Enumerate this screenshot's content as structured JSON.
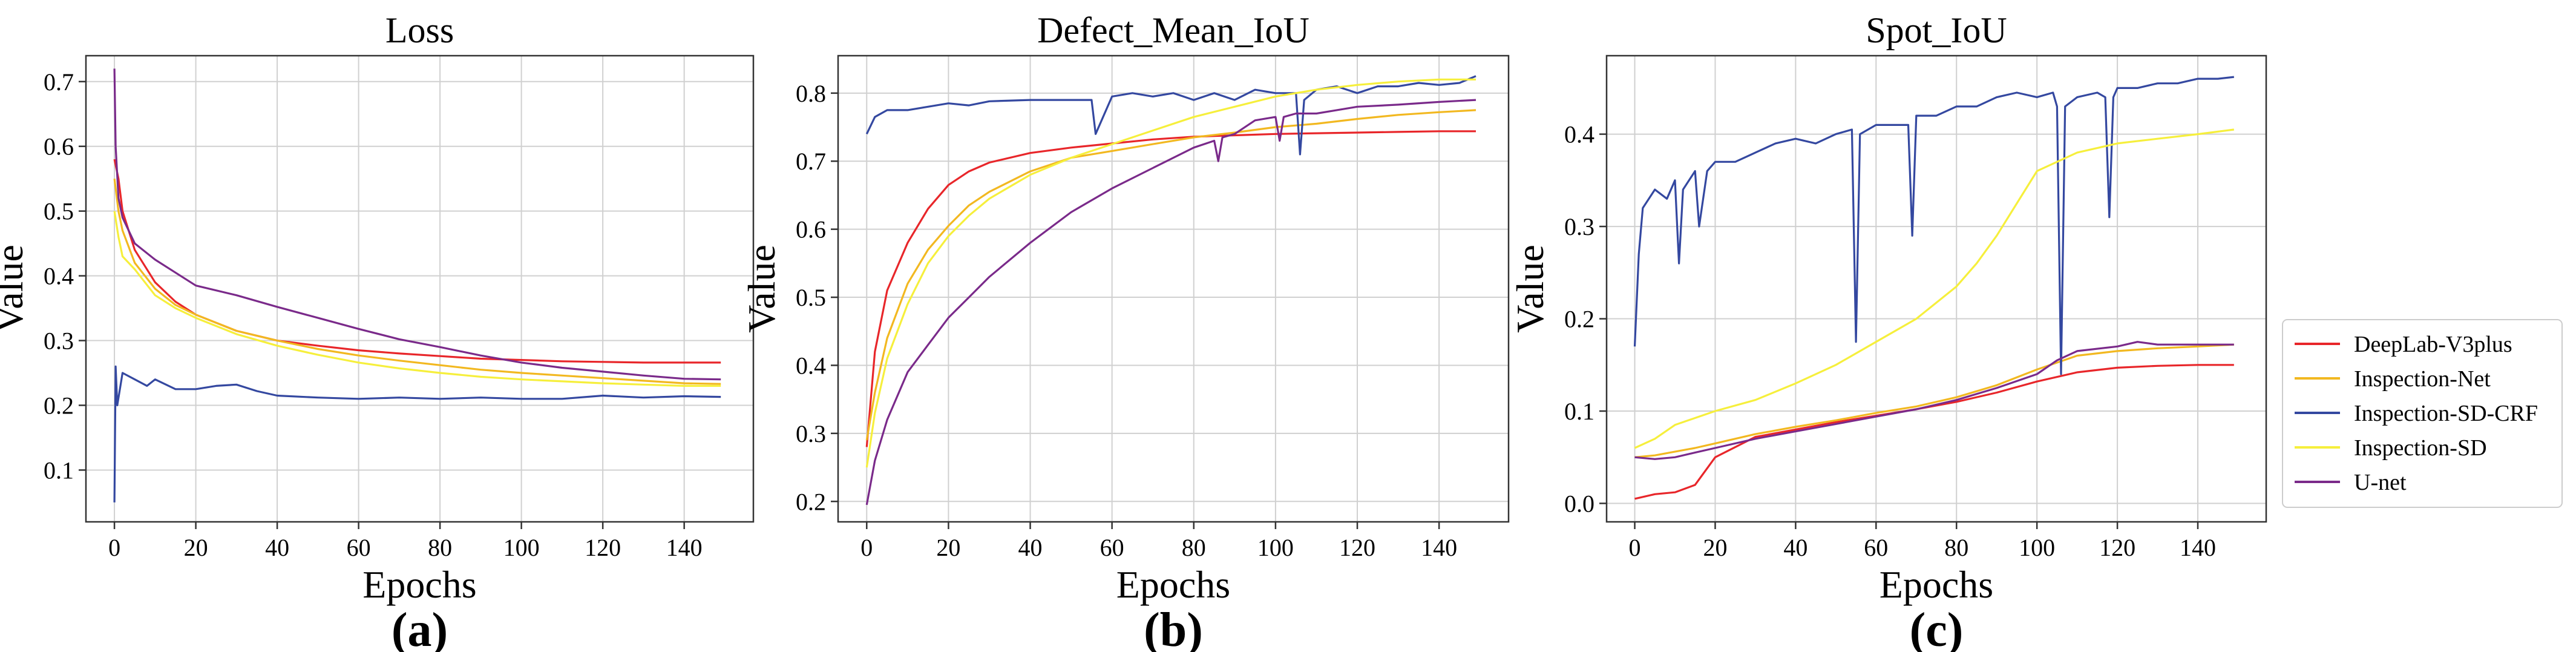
{
  "chart_data": [
    {
      "type": "line",
      "title": "Loss",
      "xlabel": "Epochs",
      "ylabel": "Value",
      "panel_label": "(a)",
      "xlim": [
        -7,
        157
      ],
      "ylim": [
        0.02,
        0.74
      ],
      "xticks": [
        0,
        20,
        40,
        60,
        80,
        100,
        120,
        140
      ],
      "yticks": [
        0.1,
        0.2,
        0.3,
        0.4,
        0.5,
        0.6,
        0.7
      ],
      "ytick_labels": [
        "0.1",
        "0.2",
        "0.3",
        "0.4",
        "0.5",
        "0.6",
        "0.7"
      ],
      "series": [
        {
          "name": "DeepLab-V3plus",
          "x": [
            0,
            1,
            2,
            5,
            10,
            15,
            20,
            30,
            40,
            50,
            60,
            70,
            80,
            90,
            100,
            110,
            120,
            130,
            140,
            149
          ],
          "values": [
            0.58,
            0.55,
            0.5,
            0.44,
            0.39,
            0.36,
            0.34,
            0.315,
            0.3,
            0.292,
            0.285,
            0.28,
            0.276,
            0.272,
            0.27,
            0.268,
            0.267,
            0.266,
            0.266,
            0.266
          ]
        },
        {
          "name": "Inspection-Net",
          "x": [
            0,
            1,
            2,
            5,
            10,
            15,
            20,
            30,
            40,
            50,
            60,
            70,
            80,
            90,
            100,
            110,
            120,
            130,
            140,
            149
          ],
          "values": [
            0.55,
            0.5,
            0.47,
            0.42,
            0.38,
            0.355,
            0.34,
            0.315,
            0.3,
            0.287,
            0.277,
            0.269,
            0.262,
            0.255,
            0.25,
            0.246,
            0.242,
            0.238,
            0.234,
            0.233
          ]
        },
        {
          "name": "Inspection-SD-CRF",
          "x": [
            0,
            0.3,
            0.7,
            2,
            5,
            8,
            10,
            15,
            20,
            25,
            30,
            35,
            40,
            50,
            60,
            70,
            80,
            90,
            100,
            110,
            120,
            130,
            140,
            149
          ],
          "values": [
            0.05,
            0.26,
            0.2,
            0.25,
            0.24,
            0.23,
            0.24,
            0.225,
            0.225,
            0.23,
            0.232,
            0.222,
            0.215,
            0.212,
            0.21,
            0.212,
            0.21,
            0.212,
            0.21,
            0.21,
            0.215,
            0.212,
            0.214,
            0.213
          ]
        },
        {
          "name": "Inspection-SD",
          "x": [
            0,
            1,
            2,
            5,
            10,
            15,
            20,
            30,
            40,
            50,
            60,
            70,
            80,
            90,
            100,
            110,
            120,
            130,
            140,
            149
          ],
          "values": [
            0.5,
            0.46,
            0.43,
            0.41,
            0.37,
            0.35,
            0.335,
            0.31,
            0.292,
            0.278,
            0.266,
            0.257,
            0.25,
            0.244,
            0.24,
            0.237,
            0.234,
            0.232,
            0.23,
            0.23
          ]
        },
        {
          "name": "U-net",
          "x": [
            0,
            0.3,
            1,
            2,
            5,
            10,
            15,
            20,
            30,
            40,
            50,
            60,
            70,
            80,
            90,
            100,
            110,
            120,
            130,
            140,
            149
          ],
          "values": [
            0.72,
            0.6,
            0.52,
            0.49,
            0.45,
            0.425,
            0.405,
            0.385,
            0.37,
            0.352,
            0.335,
            0.318,
            0.302,
            0.29,
            0.277,
            0.266,
            0.258,
            0.252,
            0.246,
            0.241,
            0.24
          ]
        }
      ]
    },
    {
      "type": "line",
      "title": "Defect_Mean_IoU",
      "xlabel": "Epochs",
      "ylabel": "Value",
      "panel_label": "(b)",
      "xlim": [
        -7,
        157
      ],
      "ylim": [
        0.17,
        0.855
      ],
      "xticks": [
        0,
        20,
        40,
        60,
        80,
        100,
        120,
        140
      ],
      "yticks": [
        0.2,
        0.3,
        0.4,
        0.5,
        0.6,
        0.7,
        0.8
      ],
      "ytick_labels": [
        "0.2",
        "0.3",
        "0.4",
        "0.5",
        "0.6",
        "0.7",
        "0.8"
      ],
      "series": [
        {
          "name": "DeepLab-V3plus",
          "x": [
            0,
            2,
            5,
            10,
            15,
            20,
            25,
            30,
            40,
            50,
            60,
            70,
            80,
            90,
            100,
            110,
            120,
            130,
            140,
            149
          ],
          "values": [
            0.28,
            0.42,
            0.51,
            0.58,
            0.63,
            0.665,
            0.685,
            0.698,
            0.712,
            0.72,
            0.726,
            0.732,
            0.736,
            0.738,
            0.74,
            0.741,
            0.742,
            0.743,
            0.744,
            0.744
          ]
        },
        {
          "name": "Inspection-Net",
          "x": [
            0,
            2,
            5,
            10,
            15,
            20,
            25,
            30,
            40,
            50,
            60,
            70,
            80,
            90,
            100,
            110,
            120,
            130,
            140,
            149
          ],
          "values": [
            0.29,
            0.36,
            0.44,
            0.52,
            0.57,
            0.605,
            0.635,
            0.655,
            0.685,
            0.705,
            0.715,
            0.725,
            0.735,
            0.742,
            0.75,
            0.755,
            0.762,
            0.768,
            0.772,
            0.775
          ]
        },
        {
          "name": "Inspection-SD-CRF",
          "x": [
            0,
            2,
            5,
            10,
            15,
            20,
            25,
            30,
            40,
            50,
            55,
            56,
            60,
            65,
            70,
            75,
            80,
            85,
            90,
            95,
            100,
            105,
            106,
            107,
            110,
            115,
            120,
            125,
            130,
            135,
            140,
            145,
            149
          ],
          "values": [
            0.74,
            0.765,
            0.775,
            0.775,
            0.78,
            0.785,
            0.782,
            0.788,
            0.79,
            0.79,
            0.79,
            0.74,
            0.795,
            0.8,
            0.795,
            0.8,
            0.79,
            0.8,
            0.79,
            0.805,
            0.8,
            0.8,
            0.71,
            0.79,
            0.805,
            0.81,
            0.8,
            0.81,
            0.81,
            0.815,
            0.812,
            0.815,
            0.825
          ]
        },
        {
          "name": "Inspection-SD",
          "x": [
            0,
            2,
            5,
            10,
            15,
            20,
            25,
            30,
            40,
            50,
            60,
            70,
            80,
            90,
            100,
            110,
            120,
            130,
            140,
            149
          ],
          "values": [
            0.25,
            0.33,
            0.41,
            0.49,
            0.55,
            0.59,
            0.62,
            0.645,
            0.68,
            0.705,
            0.725,
            0.745,
            0.765,
            0.78,
            0.795,
            0.805,
            0.812,
            0.817,
            0.82,
            0.82
          ]
        },
        {
          "name": "U-net",
          "x": [
            0,
            2,
            5,
            10,
            15,
            20,
            25,
            30,
            40,
            50,
            60,
            70,
            80,
            85,
            86,
            87,
            90,
            95,
            100,
            101,
            102,
            105,
            110,
            115,
            120,
            130,
            140,
            149
          ],
          "values": [
            0.195,
            0.26,
            0.32,
            0.39,
            0.43,
            0.47,
            0.5,
            0.53,
            0.58,
            0.625,
            0.66,
            0.69,
            0.72,
            0.73,
            0.7,
            0.735,
            0.74,
            0.76,
            0.765,
            0.73,
            0.765,
            0.77,
            0.77,
            0.775,
            0.78,
            0.783,
            0.787,
            0.79
          ]
        }
      ]
    },
    {
      "type": "line",
      "title": "Spot_IoU",
      "xlabel": "Epochs",
      "ylabel": "Value",
      "panel_label": "(c)",
      "xlim": [
        -7,
        157
      ],
      "ylim": [
        -0.02,
        0.485
      ],
      "xticks": [
        0,
        20,
        40,
        60,
        80,
        100,
        120,
        140
      ],
      "yticks": [
        0.0,
        0.1,
        0.2,
        0.3,
        0.4
      ],
      "ytick_labels": [
        "0.0",
        "0.1",
        "0.2",
        "0.3",
        "0.4"
      ],
      "series": [
        {
          "name": "DeepLab-V3plus",
          "x": [
            0,
            5,
            10,
            15,
            20,
            30,
            40,
            50,
            60,
            70,
            80,
            90,
            100,
            110,
            120,
            130,
            140,
            149
          ],
          "values": [
            0.005,
            0.01,
            0.012,
            0.02,
            0.05,
            0.072,
            0.08,
            0.088,
            0.095,
            0.102,
            0.11,
            0.12,
            0.132,
            0.142,
            0.147,
            0.149,
            0.15,
            0.15
          ]
        },
        {
          "name": "Inspection-Net",
          "x": [
            0,
            5,
            10,
            15,
            20,
            30,
            40,
            50,
            60,
            70,
            80,
            90,
            100,
            110,
            120,
            130,
            140,
            149
          ],
          "values": [
            0.05,
            0.052,
            0.056,
            0.06,
            0.065,
            0.075,
            0.083,
            0.09,
            0.098,
            0.105,
            0.115,
            0.128,
            0.145,
            0.16,
            0.165,
            0.168,
            0.17,
            0.172
          ]
        },
        {
          "name": "Inspection-SD-CRF",
          "x": [
            0,
            1,
            2,
            5,
            8,
            10,
            11,
            12,
            15,
            16,
            18,
            20,
            25,
            30,
            35,
            40,
            45,
            50,
            54,
            55,
            56,
            60,
            65,
            68,
            69,
            70,
            75,
            80,
            85,
            90,
            95,
            100,
            104,
            105,
            106,
            107,
            110,
            115,
            117,
            118,
            119,
            120,
            125,
            130,
            135,
            140,
            145,
            149
          ],
          "values": [
            0.17,
            0.27,
            0.32,
            0.34,
            0.33,
            0.35,
            0.26,
            0.34,
            0.36,
            0.3,
            0.36,
            0.37,
            0.37,
            0.38,
            0.39,
            0.395,
            0.39,
            0.4,
            0.405,
            0.175,
            0.4,
            0.41,
            0.41,
            0.41,
            0.29,
            0.42,
            0.42,
            0.43,
            0.43,
            0.44,
            0.445,
            0.44,
            0.445,
            0.43,
            0.14,
            0.43,
            0.44,
            0.445,
            0.44,
            0.31,
            0.44,
            0.45,
            0.45,
            0.455,
            0.455,
            0.46,
            0.46,
            0.462
          ]
        },
        {
          "name": "Inspection-SD",
          "x": [
            0,
            5,
            10,
            20,
            30,
            40,
            50,
            60,
            70,
            80,
            85,
            90,
            95,
            100,
            110,
            120,
            130,
            140,
            149
          ],
          "values": [
            0.06,
            0.07,
            0.085,
            0.1,
            0.112,
            0.13,
            0.15,
            0.175,
            0.2,
            0.235,
            0.26,
            0.29,
            0.325,
            0.36,
            0.38,
            0.39,
            0.395,
            0.4,
            0.405
          ]
        },
        {
          "name": "U-net",
          "x": [
            0,
            5,
            10,
            15,
            20,
            30,
            40,
            50,
            60,
            70,
            80,
            90,
            100,
            105,
            110,
            120,
            125,
            130,
            140,
            149
          ],
          "values": [
            0.05,
            0.048,
            0.05,
            0.055,
            0.06,
            0.07,
            0.078,
            0.086,
            0.094,
            0.102,
            0.112,
            0.125,
            0.14,
            0.155,
            0.165,
            0.17,
            0.175,
            0.172,
            0.172,
            0.172
          ]
        }
      ]
    }
  ],
  "legend": {
    "position": "right",
    "entries": [
      {
        "label": "DeepLab-V3plus",
        "color": "#e8262a"
      },
      {
        "label": "Inspection-Net",
        "color": "#f2b820"
      },
      {
        "label": "Inspection-SD-CRF",
        "color": "#3448a0"
      },
      {
        "label": "Inspection-SD",
        "color": "#f6ef3c"
      },
      {
        "label": "U-net",
        "color": "#7a2a8a"
      }
    ]
  }
}
